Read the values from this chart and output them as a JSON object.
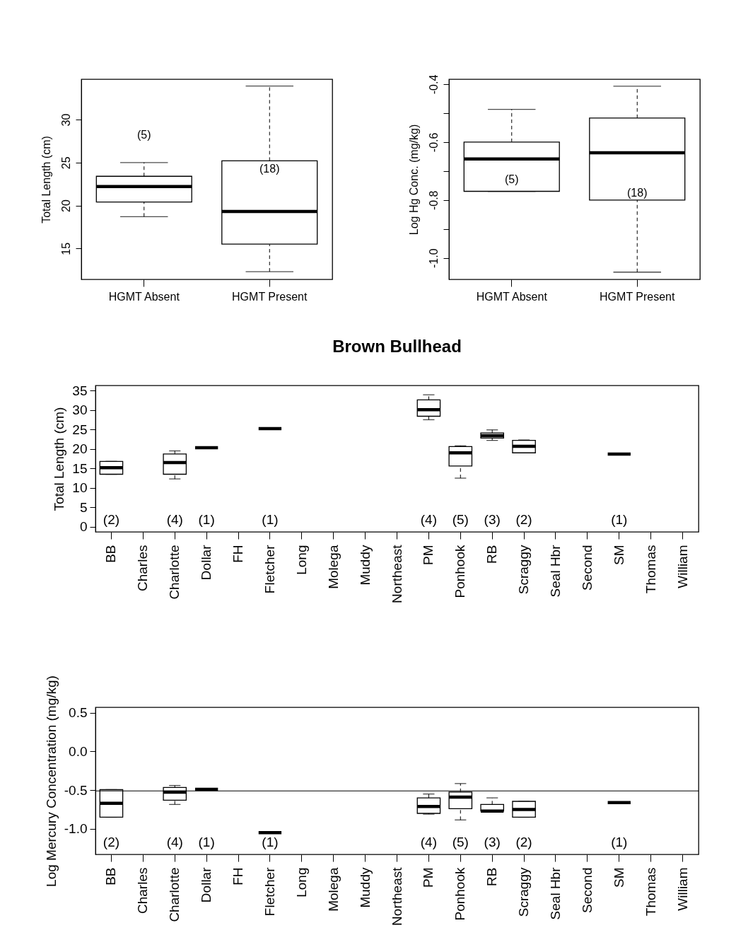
{
  "chart_data": [
    {
      "type": "box",
      "ylabel": "Total Length (cm)",
      "categories": [
        "HGMT Absent",
        "HGMT Present"
      ],
      "boxes": [
        {
          "low": 18.7,
          "q1": 20.4,
          "median": 22.2,
          "q3": 23.4,
          "high": 25.0
        },
        {
          "low": 12.3,
          "q1": 15.5,
          "median": 19.3,
          "q3": 25.2,
          "high": 33.9
        }
      ],
      "ylim": [
        11.4,
        34.7
      ],
      "yticks": [
        15,
        20,
        25,
        30
      ],
      "annotations": [
        "(5)",
        "(18)"
      ]
    },
    {
      "type": "box",
      "ylabel": "Log Hg Conc.  (mg/kg)",
      "categories": [
        "HGMT Absent",
        "HGMT Present"
      ],
      "boxes": [
        {
          "low": -0.77,
          "q1": -0.77,
          "median": -0.658,
          "q3": -0.6,
          "high": -0.487
        },
        {
          "low": -1.049,
          "q1": -0.8,
          "median": -0.637,
          "q3": -0.517,
          "high": -0.407
        }
      ],
      "ylim": [
        -1.074,
        -0.383
      ],
      "yticks": [
        {
          "value": -1.0,
          "label": "-1.0"
        },
        {
          "value": -0.9,
          "label": null
        },
        -0.8,
        {
          "value": -0.7,
          "label": null
        },
        -0.6,
        {
          "value": -0.5,
          "label": null
        },
        -0.4
      ],
      "annotations": [
        "(5)",
        "(18)"
      ]
    },
    {
      "type": "box",
      "title": "Brown Bullhead",
      "ylabel": "Total Length (cm)",
      "categories": [
        "BB",
        "Charles",
        "Charlotte",
        "Dollar",
        "FH",
        "Fletcher",
        "Long",
        "Molega",
        "Muddy",
        "Northeast",
        "PM",
        "Ponhook",
        "RB",
        "Scraggy",
        "Seal Hbr",
        "Second",
        "SM",
        "Thomas",
        "William"
      ],
      "boxes": [
        {
          "low": 13.5,
          "q1": 13.5,
          "median": 15.2,
          "q3": 16.8,
          "high": 16.8
        },
        null,
        {
          "low": 12.3,
          "q1": 13.5,
          "median": 16.5,
          "q3": 18.7,
          "high": 19.5
        },
        {
          "low": 20.3,
          "q1": 20.3,
          "median": 20.3,
          "q3": 20.3,
          "high": 20.3
        },
        null,
        {
          "low": 25.2,
          "q1": 25.2,
          "median": 25.2,
          "q3": 25.2,
          "high": 25.2
        },
        null,
        null,
        null,
        null,
        {
          "low": 27.5,
          "q1": 28.4,
          "median": 30.1,
          "q3": 32.6,
          "high": 33.9
        },
        {
          "low": 12.5,
          "q1": 15.6,
          "median": 19.0,
          "q3": 20.6,
          "high": 20.8
        },
        {
          "low": 22.2,
          "q1": 22.8,
          "median": 23.4,
          "q3": 24.1,
          "high": 24.9
        },
        {
          "low": 19.0,
          "q1": 19.0,
          "median": 20.7,
          "q3": 22.2,
          "high": 22.3
        },
        null,
        null,
        {
          "low": 18.7,
          "q1": 18.7,
          "median": 18.7,
          "q3": 18.7,
          "high": 18.7
        },
        null,
        null
      ],
      "ylim": [
        -1.3,
        36.3
      ],
      "yticks": [
        0,
        5,
        10,
        15,
        20,
        25,
        30,
        35
      ],
      "annotations": [
        "(2)",
        "(4)",
        "(1)",
        "(1)",
        "(4)",
        "(5)",
        "(3)",
        "(2)",
        "(1)"
      ]
    },
    {
      "type": "box",
      "ylabel": "Log Mercury Concentration (mg/kg)",
      "categories": [
        "BB",
        "Charles",
        "Charlotte",
        "Dollar",
        "FH",
        "Fletcher",
        "Long",
        "Molega",
        "Muddy",
        "Northeast",
        "PM",
        "Ponhook",
        "RB",
        "Scraggy",
        "Seal Hbr",
        "Second",
        "SM",
        "Thomas",
        "William"
      ],
      "boxes": [
        {
          "low": -0.85,
          "q1": -0.85,
          "median": -0.67,
          "q3": -0.494,
          "high": -0.494
        },
        null,
        {
          "low": -0.685,
          "q1": -0.63,
          "median": -0.527,
          "q3": -0.465,
          "high": -0.44
        },
        {
          "low": -0.49,
          "q1": -0.49,
          "median": -0.49,
          "q3": -0.49,
          "high": -0.49
        },
        null,
        {
          "low": -1.05,
          "q1": -1.05,
          "median": -1.05,
          "q3": -1.05,
          "high": -1.05
        },
        null,
        null,
        null,
        null,
        {
          "low": -0.81,
          "q1": -0.8,
          "median": -0.71,
          "q3": -0.6,
          "high": -0.55
        },
        {
          "low": -0.885,
          "q1": -0.74,
          "median": -0.59,
          "q3": -0.525,
          "high": -0.415
        },
        {
          "low": -0.77,
          "q1": -0.77,
          "median": -0.77,
          "q3": -0.685,
          "high": -0.6
        },
        {
          "low": -0.85,
          "q1": -0.85,
          "median": -0.75,
          "q3": -0.645,
          "high": -0.645
        },
        null,
        null,
        {
          "low": -0.66,
          "q1": -0.66,
          "median": -0.66,
          "q3": -0.66,
          "high": -0.66
        },
        null,
        null
      ],
      "ylim": [
        -1.33,
        0.57
      ],
      "yticks": [
        {
          "value": -1.0,
          "label": "-1.0"
        },
        -0.5,
        {
          "value": 0,
          "label": "0.0"
        },
        0.5
      ],
      "ref_lines": [
        {
          "axis": "y",
          "value": -0.51
        }
      ],
      "annotations": [
        "(2)",
        "(4)",
        "(1)",
        "(1)",
        "(4)",
        "(5)",
        "(3)",
        "(2)",
        "(1)"
      ]
    }
  ]
}
